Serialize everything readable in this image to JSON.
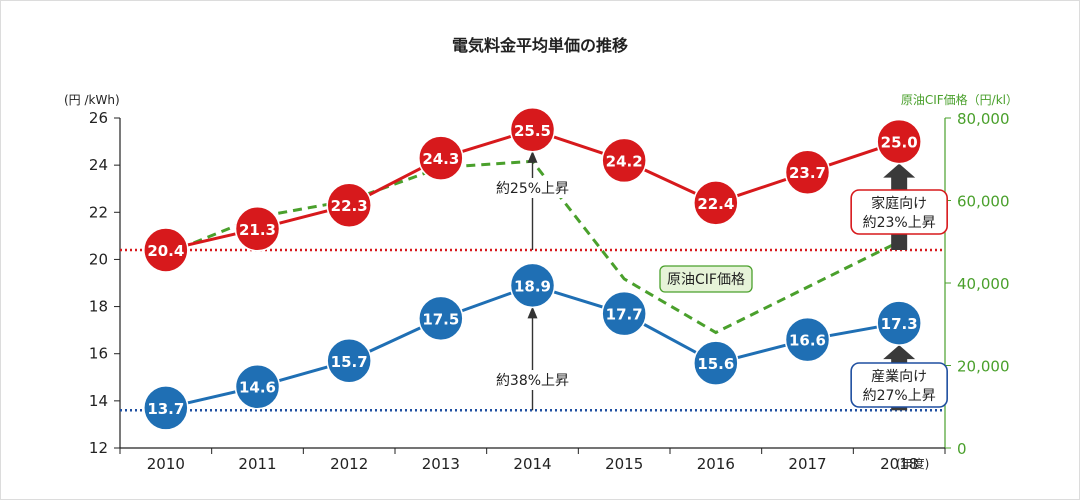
{
  "chart_data": {
    "type": "line",
    "title": "電気料金平均単価の推移",
    "left_axis_label": "(円 /kWh)",
    "right_axis_label": "原油CIF価格（円/kl）",
    "x_unit_label": "(年度)",
    "categories": [
      "2010",
      "2011",
      "2012",
      "2013",
      "2014",
      "2015",
      "2016",
      "2017",
      "2018"
    ],
    "ylim_left": [
      12,
      26
    ],
    "y_ticks_left": [
      "12",
      "14",
      "16",
      "18",
      "20",
      "22",
      "24",
      "26"
    ],
    "ylim_right": [
      0,
      80000
    ],
    "y_ticks_right": [
      "0",
      "20,000",
      "40,000",
      "60,000",
      "80,000"
    ],
    "series": [
      {
        "name": "家庭向け",
        "axis": "left",
        "color": "#d7191c",
        "values": [
          20.4,
          21.3,
          22.3,
          24.3,
          25.5,
          24.2,
          22.4,
          23.7,
          25.0
        ],
        "labels": [
          "20.4",
          "21.3",
          "22.3",
          "24.3",
          "25.5",
          "24.2",
          "22.4",
          "23.7",
          "25.0"
        ]
      },
      {
        "name": "産業向け",
        "axis": "left",
        "color": "#1f6fb4",
        "values": [
          13.7,
          14.6,
          15.7,
          17.5,
          18.9,
          17.7,
          15.6,
          16.6,
          17.3
        ],
        "labels": [
          "13.7",
          "14.6",
          "15.7",
          "17.5",
          "18.9",
          "17.7",
          "15.6",
          "16.6",
          "17.3"
        ]
      },
      {
        "name": "原油CIF価格",
        "axis": "right",
        "color": "#4aa02c",
        "style": "dashed",
        "values": [
          47000,
          56000,
          60000,
          68000,
          69500,
          41000,
          28000,
          39000,
          50000
        ]
      }
    ],
    "reference_lines": [
      {
        "name": "household-baseline",
        "value": 20.4,
        "color": "#d7191c"
      },
      {
        "name": "industrial-baseline",
        "value": 13.6,
        "color": "#1f4fa0"
      }
    ],
    "annotations": {
      "household_rise_2014": "約25%上昇",
      "industrial_rise_2014": "約38%上昇",
      "crude_label": "原油CIF価格",
      "household_box_line1": "家庭向け",
      "household_box_line2": "約23%上昇",
      "industrial_box_line1": "産業向け",
      "industrial_box_line2": "約27%上昇"
    },
    "grid": false,
    "colors": {
      "household": "#d7191c",
      "industrial": "#1f6fb4",
      "crude": "#4aa02c",
      "crude_label_bg": "#e6f3d8"
    }
  }
}
